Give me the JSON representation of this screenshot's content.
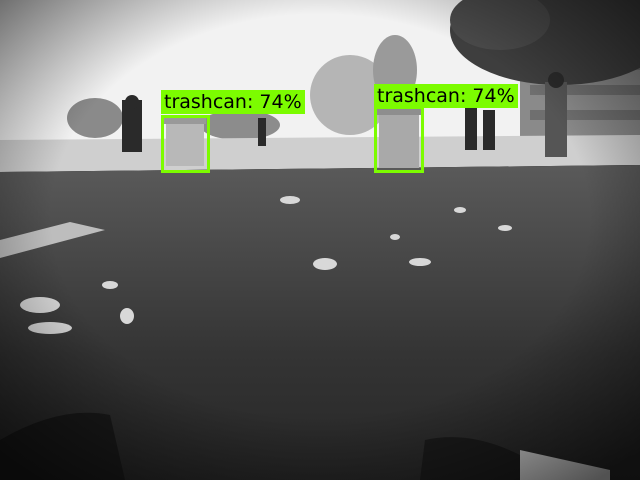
{
  "scene": {
    "colors": {
      "sky": "#f4f4f4",
      "path": "#c9c9c9",
      "grass": "#3a3a3a",
      "trashcan": "#b8b8b8",
      "box_color": "#7CFC00"
    }
  },
  "detections": [
    {
      "label": "trashcan: 74%"
    },
    {
      "label": "trashcan: 74%"
    }
  ]
}
